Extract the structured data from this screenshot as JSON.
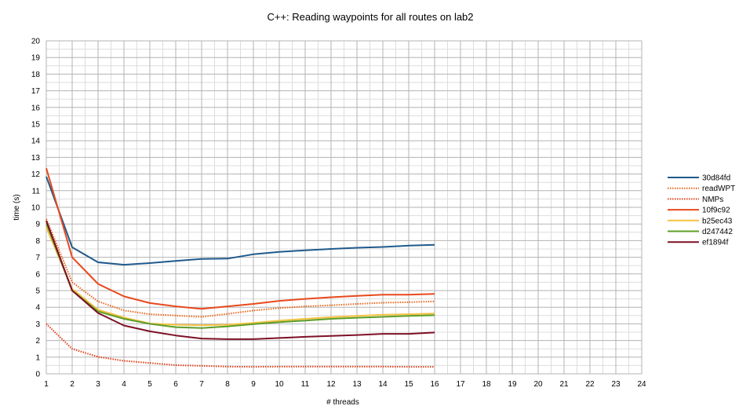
{
  "chart_data": {
    "type": "line",
    "title": "C++: Reading waypoints for all routes on lab2",
    "xlabel": "# threads",
    "ylabel": "time (s)",
    "xlim": [
      1,
      24
    ],
    "ylim": [
      0,
      20
    ],
    "x_ticks": [
      1,
      2,
      3,
      4,
      5,
      6,
      7,
      8,
      9,
      10,
      11,
      12,
      13,
      14,
      15,
      16,
      17,
      18,
      19,
      20,
      21,
      22,
      23,
      24
    ],
    "y_ticks": [
      0,
      1,
      2,
      3,
      4,
      5,
      6,
      7,
      8,
      9,
      10,
      11,
      12,
      13,
      14,
      15,
      16,
      17,
      18,
      19,
      20
    ],
    "grid": "major and minor gridlines",
    "legend_position": "right",
    "x": [
      1,
      2,
      3,
      4,
      5,
      6,
      7,
      8,
      9,
      10,
      11,
      12,
      13,
      14,
      15,
      16
    ],
    "series": [
      {
        "name": "30d84fd",
        "color": "#1f5a8c",
        "dash": "solid",
        "values": [
          11.85,
          7.6,
          6.7,
          6.55,
          6.65,
          6.78,
          6.9,
          6.92,
          7.18,
          7.32,
          7.42,
          7.5,
          7.57,
          7.62,
          7.7,
          7.75
        ]
      },
      {
        "name": "readWPT",
        "color": "#e8681e",
        "dash": "dotted",
        "values": [
          9.3,
          5.5,
          4.35,
          3.8,
          3.58,
          3.5,
          3.42,
          3.6,
          3.8,
          3.95,
          4.05,
          4.12,
          4.2,
          4.27,
          4.3,
          4.35
        ]
      },
      {
        "name": "NMPs",
        "color": "#e0401a",
        "dash": "dotted",
        "values": [
          3.0,
          1.5,
          1.02,
          0.78,
          0.65,
          0.52,
          0.48,
          0.43,
          0.42,
          0.43,
          0.43,
          0.43,
          0.43,
          0.43,
          0.42,
          0.42
        ]
      },
      {
        "name": "10f9c92",
        "color": "#e8491d",
        "dash": "solid",
        "values": [
          12.35,
          7.0,
          5.4,
          4.65,
          4.25,
          4.05,
          3.9,
          4.05,
          4.2,
          4.38,
          4.5,
          4.6,
          4.68,
          4.75,
          4.75,
          4.8
        ]
      },
      {
        "name": "b25ec43",
        "color": "#f5c242",
        "dash": "solid",
        "values": [
          8.8,
          5.1,
          3.85,
          3.38,
          3.02,
          2.95,
          2.92,
          2.95,
          3.05,
          3.2,
          3.3,
          3.4,
          3.48,
          3.55,
          3.58,
          3.62
        ]
      },
      {
        "name": "d247442",
        "color": "#5c9e2a",
        "dash": "solid",
        "values": [
          9.05,
          5.0,
          3.75,
          3.3,
          3.0,
          2.8,
          2.75,
          2.85,
          2.98,
          3.1,
          3.2,
          3.3,
          3.37,
          3.42,
          3.48,
          3.52
        ]
      },
      {
        "name": "ef1894f",
        "color": "#7d1024",
        "dash": "solid",
        "values": [
          9.2,
          5.0,
          3.65,
          2.9,
          2.55,
          2.3,
          2.12,
          2.08,
          2.08,
          2.15,
          2.22,
          2.28,
          2.33,
          2.4,
          2.4,
          2.48
        ]
      }
    ]
  }
}
